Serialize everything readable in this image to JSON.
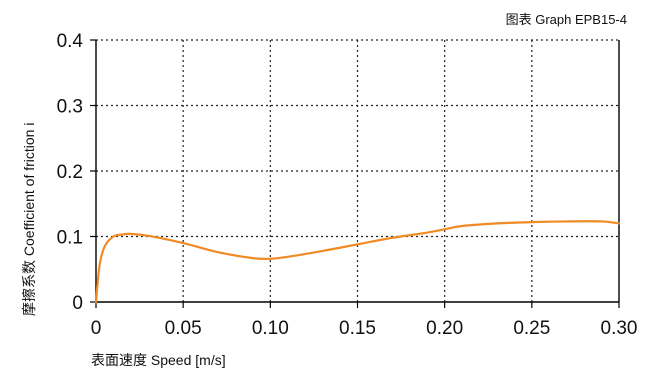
{
  "chart_data": {
    "type": "line",
    "graph_id": "图表 Graph EPB15-4",
    "xlabel": "表面速度 Speed  [m/s]",
    "ylabel": "摩擦系数 Coefficient of friction i",
    "xlim": [
      0,
      0.3
    ],
    "ylim": [
      0,
      0.4
    ],
    "x_ticks": [
      "0",
      "0.05",
      "0.10",
      "0.15",
      "0.20",
      "0.25",
      "0.30"
    ],
    "y_ticks": [
      "0",
      "0.1",
      "0.2",
      "0.3",
      "0.4"
    ],
    "grid": true,
    "line_color": "#f08a24",
    "series": [
      {
        "x": [
          0,
          0.002,
          0.005,
          0.01,
          0.015,
          0.02,
          0.03,
          0.05,
          0.07,
          0.09,
          0.1,
          0.11,
          0.13,
          0.15,
          0.17,
          0.19,
          0.2,
          0.21,
          0.23,
          0.25,
          0.27,
          0.29,
          0.3
        ],
        "y": [
          0.0,
          0.055,
          0.085,
          0.1,
          0.103,
          0.104,
          0.101,
          0.09,
          0.076,
          0.067,
          0.066,
          0.069,
          0.078,
          0.088,
          0.098,
          0.106,
          0.111,
          0.116,
          0.12,
          0.122,
          0.123,
          0.123,
          0.12
        ]
      }
    ]
  }
}
